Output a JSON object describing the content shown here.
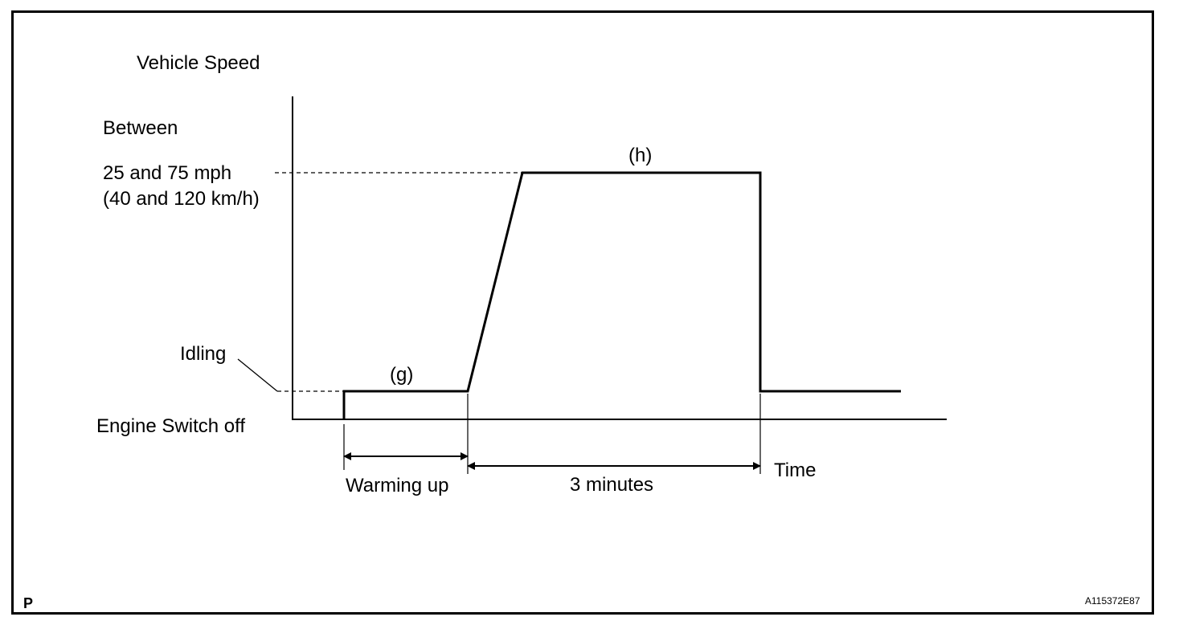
{
  "labels": {
    "y_axis_title": "Vehicle Speed",
    "speed_line1": "Between",
    "speed_line2": "25 and 75 mph",
    "speed_line3": "(40 and 120 km/h)",
    "idling": "Idling",
    "engine_off": "Engine Switch off",
    "segment_g": "(g)",
    "segment_h": "(h)",
    "warming_up": "Warming up",
    "three_minutes": "3 minutes",
    "time": "Time",
    "corner_p": "P",
    "figure_code": "A115372E87"
  },
  "colors": {
    "ink": "#000000",
    "background": "#ffffff"
  }
}
